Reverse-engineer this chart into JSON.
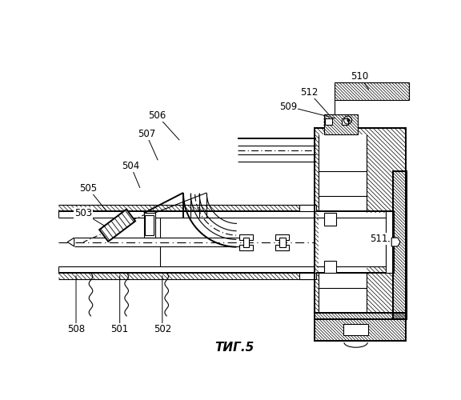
{
  "title": "ΤИГ.5",
  "bg_color": "#ffffff",
  "line_color": "#000000",
  "fig_width": 5.76,
  "fig_height": 5.0,
  "dpi": 100
}
